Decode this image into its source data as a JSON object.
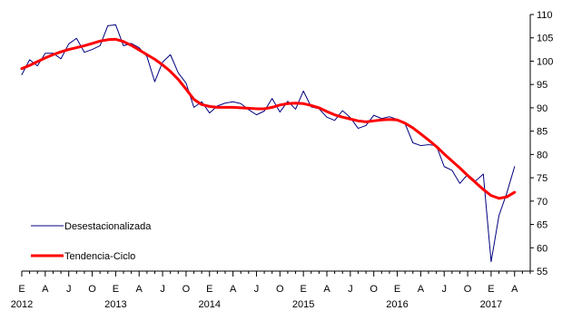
{
  "chart_data": {
    "type": "line",
    "title": "",
    "xlabel": "",
    "ylabel": "",
    "ylim": [
      55,
      110
    ],
    "y_ticks": [
      55,
      60,
      65,
      70,
      75,
      80,
      85,
      90,
      95,
      100,
      105,
      110
    ],
    "y_axis_side": "right",
    "grid": false,
    "legend_position": "bottom-left",
    "x_tick_labels": [
      "E",
      "A",
      "J",
      "O",
      "E",
      "A",
      "J",
      "O",
      "E",
      "A",
      "J",
      "O",
      "E",
      "A",
      "J",
      "O",
      "E",
      "A",
      "J",
      "O",
      "E",
      "A"
    ],
    "year_labels": [
      "2012",
      "2013",
      "2014",
      "2015",
      "2016",
      "2017"
    ],
    "x": [
      "2012-01",
      "2012-02",
      "2012-03",
      "2012-04",
      "2012-05",
      "2012-06",
      "2012-07",
      "2012-08",
      "2012-09",
      "2012-10",
      "2012-11",
      "2012-12",
      "2013-01",
      "2013-02",
      "2013-03",
      "2013-04",
      "2013-05",
      "2013-06",
      "2013-07",
      "2013-08",
      "2013-09",
      "2013-10",
      "2013-11",
      "2013-12",
      "2014-01",
      "2014-02",
      "2014-03",
      "2014-04",
      "2014-05",
      "2014-06",
      "2014-07",
      "2014-08",
      "2014-09",
      "2014-10",
      "2014-11",
      "2014-12",
      "2015-01",
      "2015-02",
      "2015-03",
      "2015-04",
      "2015-05",
      "2015-06",
      "2015-07",
      "2015-08",
      "2015-09",
      "2015-10",
      "2015-11",
      "2015-12",
      "2016-01",
      "2016-02",
      "2016-03",
      "2016-04",
      "2016-05",
      "2016-06",
      "2016-07",
      "2016-08",
      "2016-09",
      "2016-10",
      "2016-11",
      "2016-12",
      "2017-01",
      "2017-02",
      "2017-03",
      "2017-04"
    ],
    "series": [
      {
        "name": "Desestacionalizada",
        "color": "#000080",
        "values": [
          97.1,
          100.3,
          99.0,
          101.7,
          101.7,
          100.5,
          103.7,
          104.9,
          101.9,
          102.5,
          103.3,
          107.6,
          107.8,
          103.3,
          103.8,
          102.9,
          101.0,
          95.6,
          99.8,
          101.4,
          97.5,
          95.3,
          90.1,
          91.3,
          88.9,
          90.4,
          91.0,
          91.3,
          90.9,
          89.6,
          88.5,
          89.3,
          92.0,
          89.1,
          91.4,
          89.7,
          93.6,
          90.2,
          89.8,
          88.0,
          87.3,
          89.4,
          87.9,
          85.6,
          86.2,
          88.4,
          87.7,
          88.1,
          87.5,
          86.6,
          82.5,
          81.9,
          82.1,
          81.9,
          77.4,
          76.6,
          73.8,
          75.7,
          74.3,
          75.8,
          57.0,
          66.9,
          71.7,
          77.4
        ]
      },
      {
        "name": "Tendencia-Ciclo",
        "color": "#ff0000",
        "values": [
          98.4,
          99.1,
          99.9,
          100.7,
          101.4,
          102.0,
          102.5,
          102.9,
          103.3,
          103.8,
          104.3,
          104.6,
          104.7,
          104.2,
          103.4,
          102.4,
          101.4,
          100.4,
          99.2,
          97.8,
          96.1,
          94.0,
          91.8,
          90.7,
          90.3,
          90.1,
          90.1,
          90.1,
          90.0,
          89.9,
          89.8,
          89.8,
          90.1,
          90.6,
          90.9,
          91.0,
          90.9,
          90.5,
          90.0,
          89.2,
          88.5,
          88.0,
          87.6,
          87.2,
          87.0,
          87.2,
          87.4,
          87.5,
          87.4,
          86.7,
          85.7,
          84.4,
          83.1,
          81.7,
          80.1,
          78.6,
          77.1,
          75.5,
          74.0,
          72.5,
          71.2,
          70.6,
          70.9,
          71.9
        ]
      }
    ]
  }
}
